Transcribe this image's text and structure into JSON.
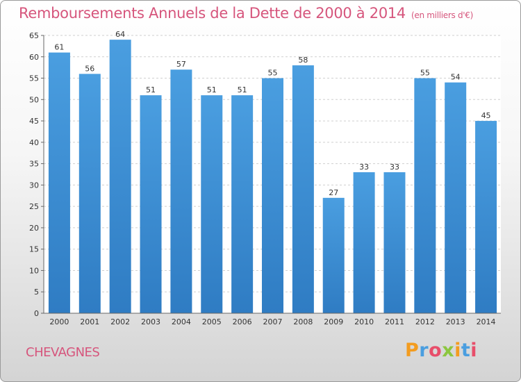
{
  "chart_data": {
    "type": "bar",
    "title": "Remboursements Annuels de la Dette de 2000 à 2014",
    "unit_label": "(en milliers d'€)",
    "categories": [
      "2000",
      "2001",
      "2002",
      "2003",
      "2004",
      "2005",
      "2006",
      "2007",
      "2008",
      "2009",
      "2010",
      "2011",
      "2012",
      "2013",
      "2014"
    ],
    "values": [
      61,
      56,
      64,
      51,
      57,
      51,
      51,
      55,
      58,
      27,
      33,
      33,
      55,
      54,
      45
    ],
    "ylim": [
      0,
      65
    ],
    "yticks": [
      0,
      5,
      10,
      15,
      20,
      25,
      30,
      35,
      40,
      45,
      50,
      55,
      60,
      65
    ],
    "xlabel": "",
    "ylabel": "",
    "grid": true,
    "bar_color": "#4a9ee0",
    "bar_color_dark": "#2f7cc3"
  },
  "commune": "CHEVAGNES",
  "logo": {
    "letters": [
      "P",
      "r",
      "o",
      "x",
      "i",
      "t",
      "i"
    ],
    "colors": [
      "#f39c1f",
      "#4a9ee0",
      "#e84e6a",
      "#8cc63f",
      "#f39c1f",
      "#4a9ee0",
      "#e84e6a"
    ]
  }
}
